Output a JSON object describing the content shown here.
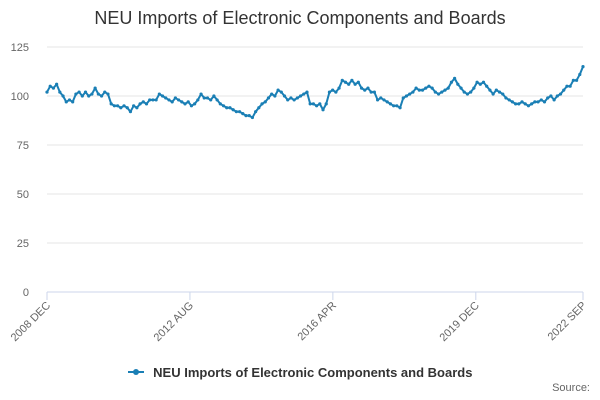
{
  "chart_data": {
    "type": "line",
    "title": "NEU Imports of Electronic Components and Boards",
    "xlabel": "",
    "ylabel": "",
    "ylim": [
      0,
      125
    ],
    "yticks": [
      0,
      25,
      50,
      75,
      100,
      125
    ],
    "grid": true,
    "legend_position": "bottom",
    "x_start": "2008-12",
    "x_end": "2022-09",
    "x_tick_labels": [
      "2008 DEC",
      "2012 AUG",
      "2016 APR",
      "2019 DEC",
      "2022 SEP"
    ],
    "series": [
      {
        "name": "NEU Imports of Electronic Components and Boards",
        "color": "#1a7fb5",
        "values": [
          102,
          105,
          104,
          106,
          102,
          100,
          97,
          98,
          97,
          101,
          102,
          100,
          102,
          100,
          101,
          104,
          101,
          100,
          102,
          101,
          96,
          95,
          95,
          94,
          95,
          94,
          92,
          95,
          94,
          96,
          97,
          96,
          98,
          98,
          98,
          101,
          100,
          99,
          98,
          97,
          99,
          98,
          97,
          96,
          97,
          95,
          96,
          98,
          101,
          99,
          99,
          98,
          100,
          98,
          96,
          95,
          94,
          94,
          93,
          92,
          92,
          91,
          90,
          90,
          89,
          92,
          94,
          96,
          97,
          99,
          101,
          100,
          103,
          102,
          100,
          98,
          99,
          98,
          99,
          100,
          101,
          102,
          96,
          96,
          95,
          96,
          93,
          96,
          102,
          103,
          102,
          104,
          108,
          107,
          106,
          108,
          106,
          107,
          104,
          103,
          104,
          102,
          102,
          98,
          99,
          98,
          97,
          96,
          95,
          95,
          94,
          99,
          100,
          101,
          102,
          104,
          103,
          103,
          104,
          105,
          104,
          102,
          101,
          102,
          103,
          104,
          107,
          109,
          106,
          104,
          102,
          101,
          102,
          104,
          107,
          106,
          107,
          105,
          103,
          101,
          103,
          102,
          101,
          99,
          98,
          97,
          96,
          96,
          97,
          96,
          95,
          96,
          97,
          97,
          98,
          97,
          99,
          100,
          98,
          100,
          101,
          103,
          105,
          105,
          108,
          108,
          111,
          115
        ]
      }
    ],
    "credits": "Source:"
  }
}
